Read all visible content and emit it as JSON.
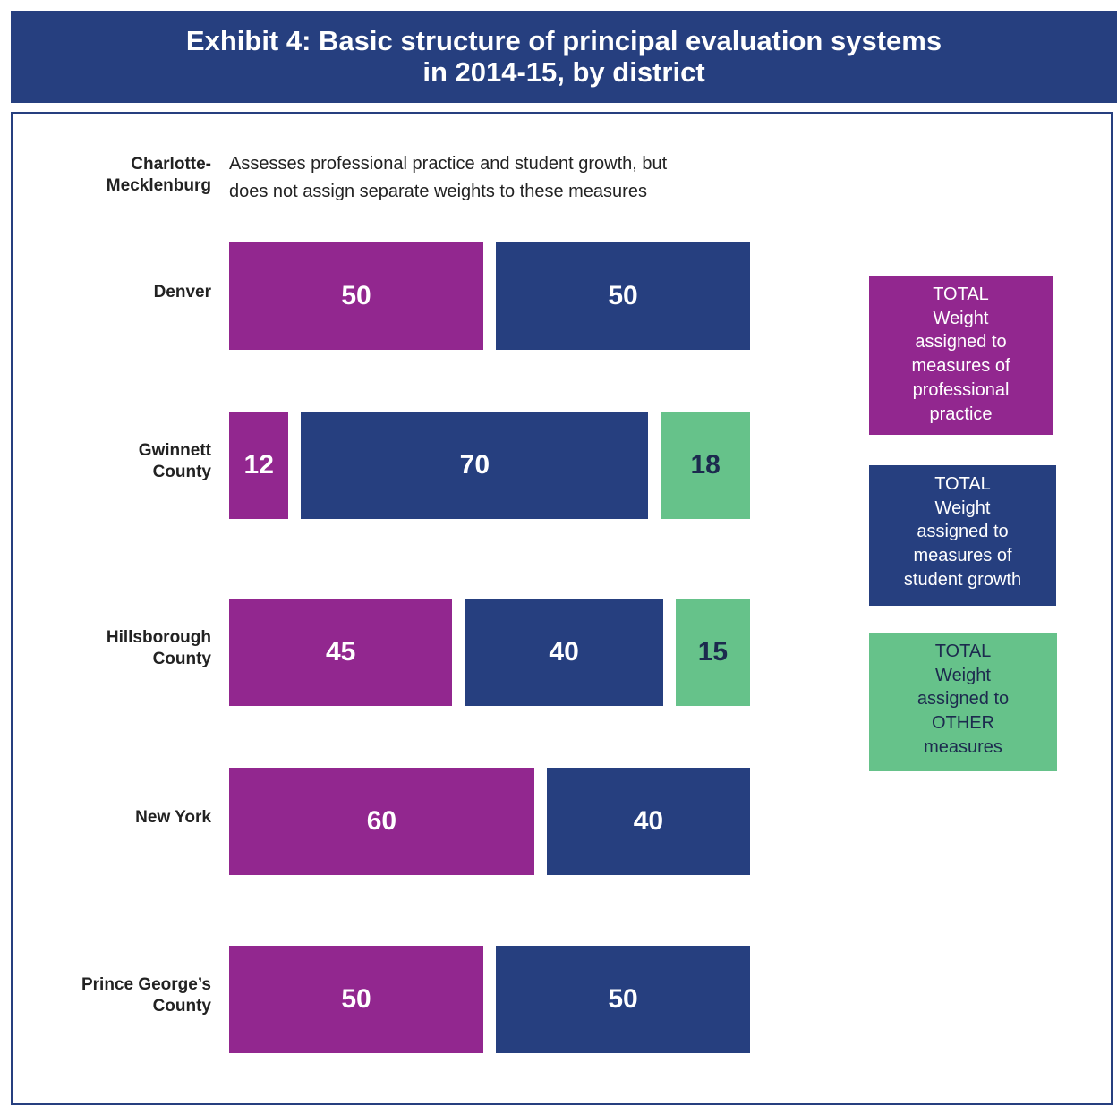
{
  "chart_data": {
    "type": "bar",
    "orientation": "horizontal",
    "stacked": true,
    "title": "Exhibit 4: Basic structure of principal evaluation systems\nin 2014-15, by district",
    "categories": [
      "Charlotte-\nMecklenburg",
      "Denver",
      "Gwinnett\nCounty",
      "Hillsborough\nCounty",
      "New York",
      "Prince George’s\nCounty"
    ],
    "annotation": "Assesses professional practice and student growth, but\ndoes not assign separate weights to these measures",
    "xlim": [
      0,
      100
    ],
    "series": [
      {
        "name": "TOTAL\nWeight\nassigned to\nmeasures of\nprofessional\npractice",
        "color": "#92278f",
        "values": [
          null,
          50,
          12,
          45,
          60,
          50
        ]
      },
      {
        "name": "TOTAL\nWeight\nassigned to\nmeasures of\nstudent growth",
        "color": "#263f7f",
        "values": [
          null,
          50,
          70,
          40,
          40,
          50
        ]
      },
      {
        "name": "TOTAL\nWeight\nassigned to\nOTHER\nmeasures",
        "color": "#66c28a",
        "values": [
          null,
          null,
          18,
          15,
          null,
          null
        ]
      }
    ]
  }
}
